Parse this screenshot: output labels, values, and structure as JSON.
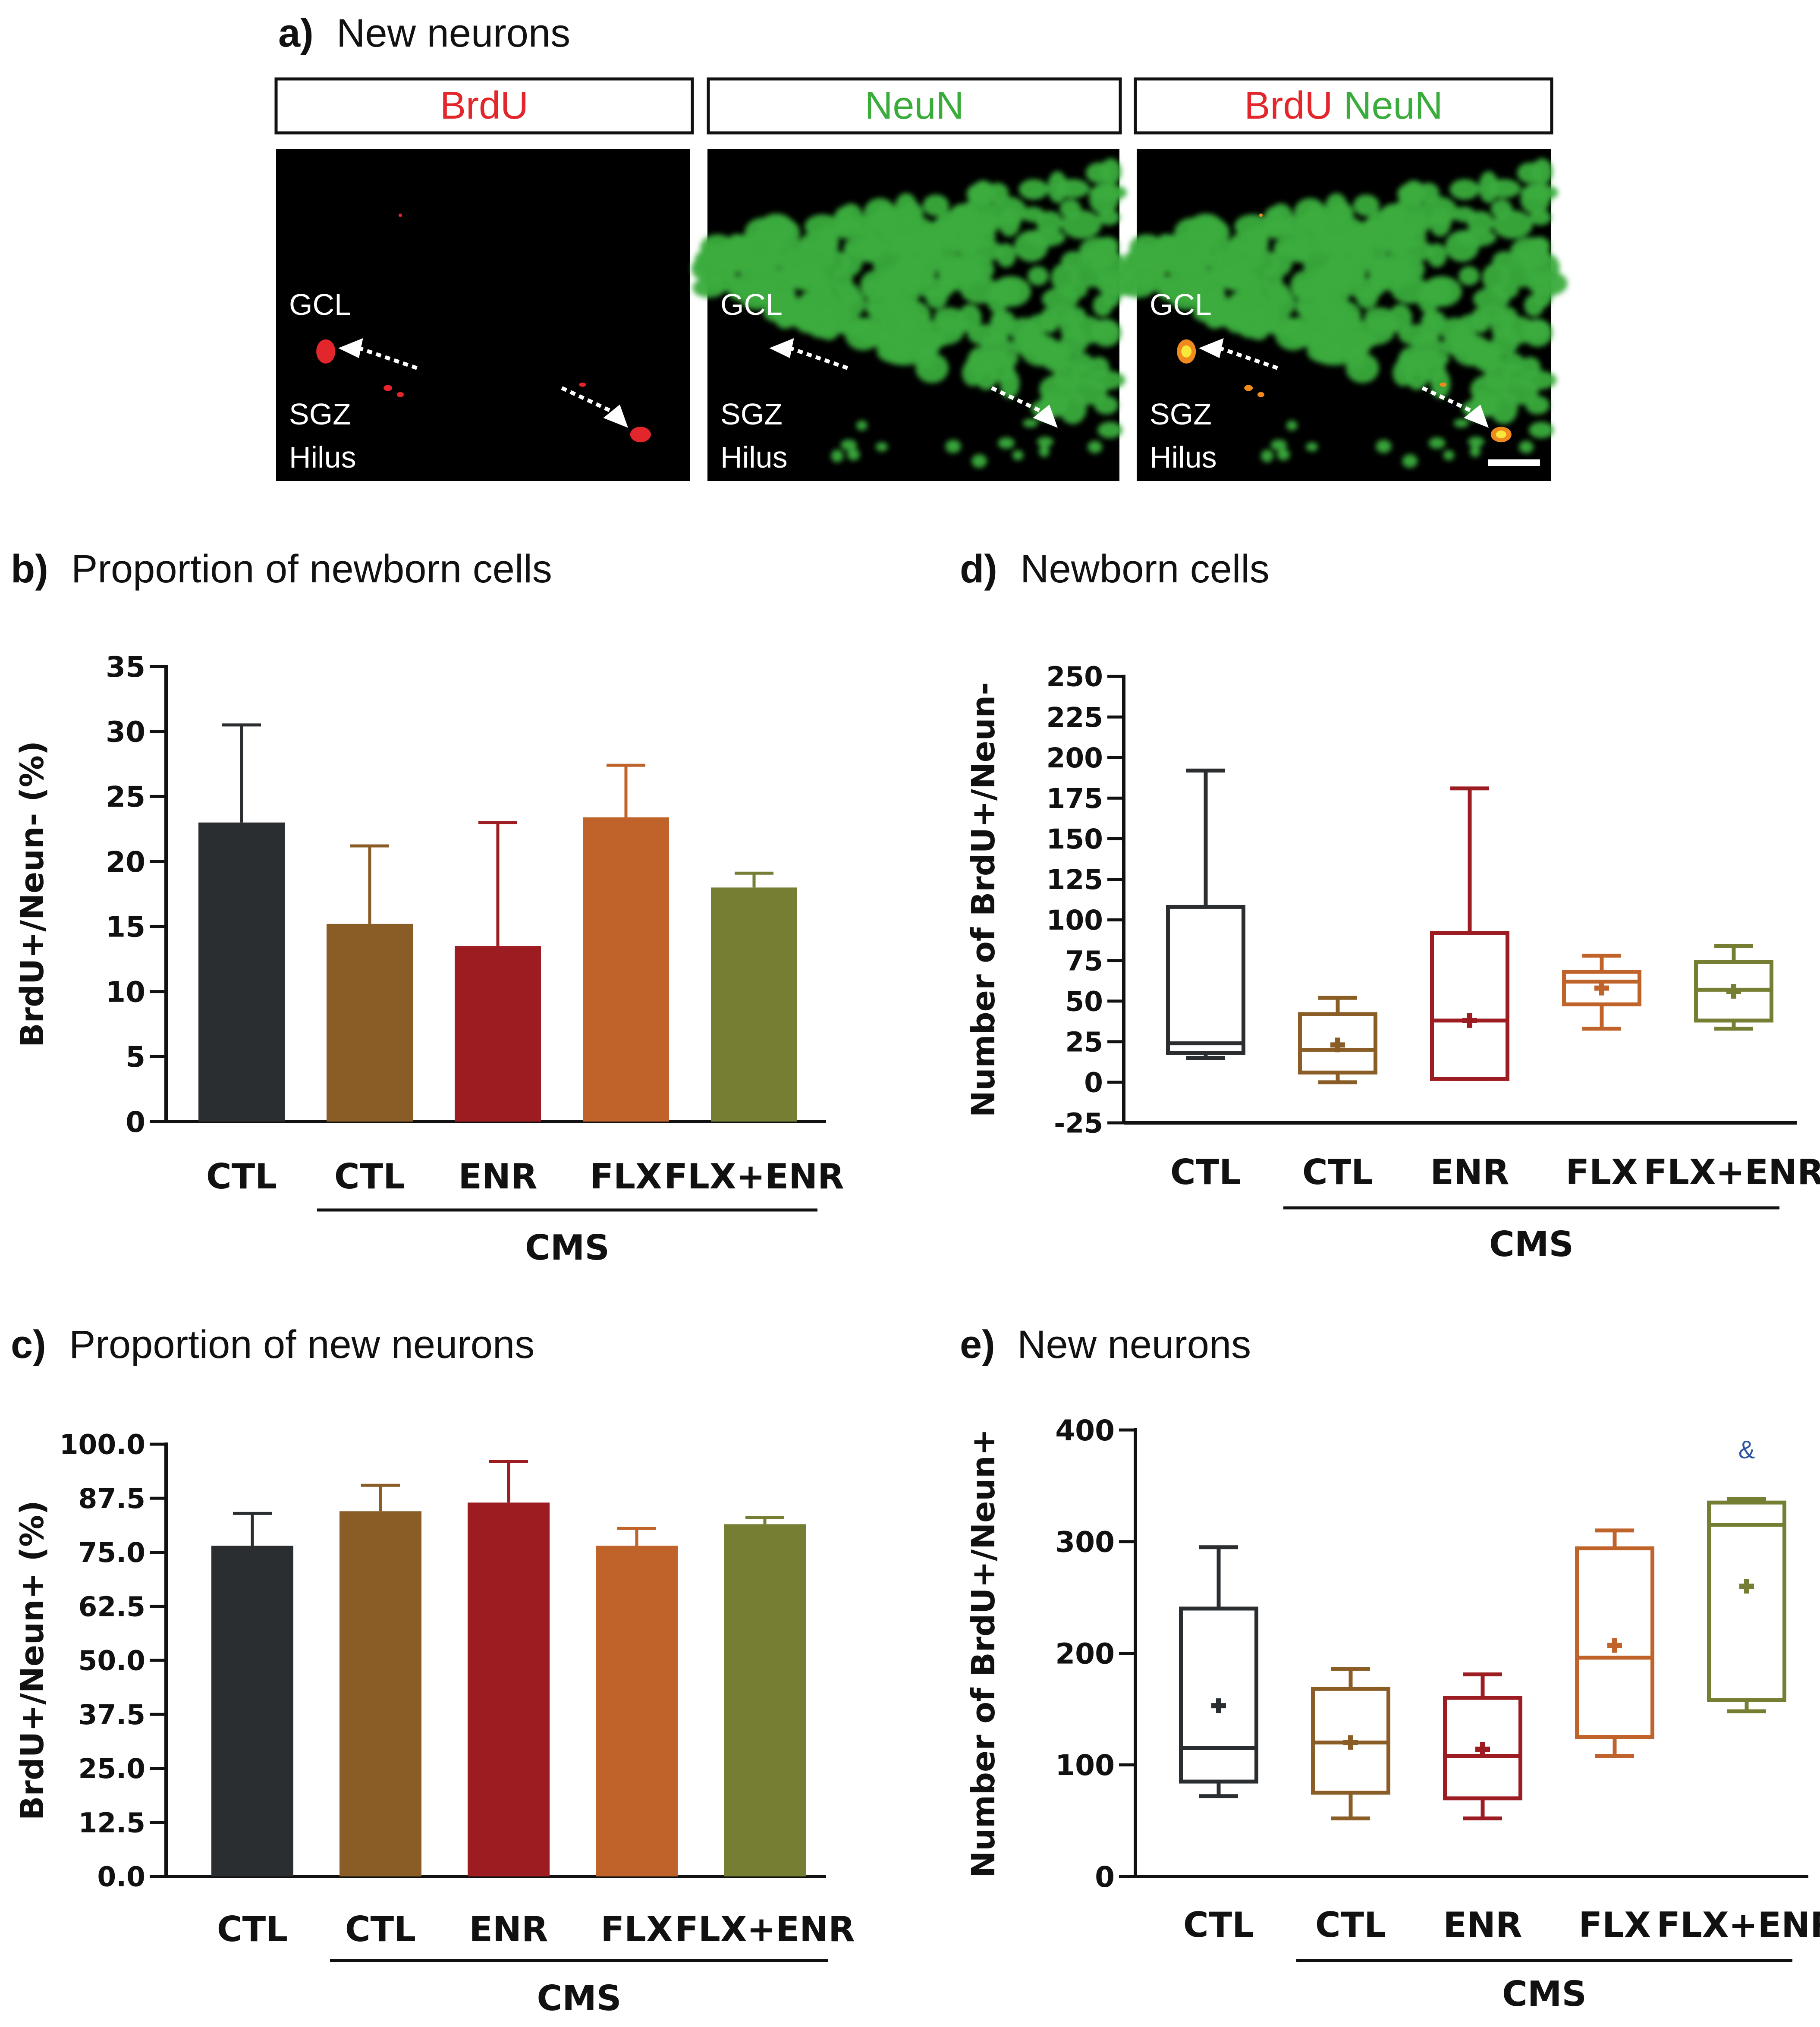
{
  "colors": {
    "CTL": "#2a2e31",
    "CMS_CTL": "#8a5d26",
    "ENR": "#9c1c22",
    "FLX": "#c0632a",
    "FLX_ENR": "#757e33",
    "brdu": "#e3262b",
    "neun": "#3aac3c",
    "stat_mark": "#3056a0"
  },
  "panel_a": {
    "letter": "a)",
    "title": "New neurons",
    "images": [
      {
        "header": [
          "BrdU"
        ],
        "header_colors": [
          "brdu"
        ],
        "labels": [
          "GCL",
          "SGZ",
          "Hilus"
        ]
      },
      {
        "header": [
          "NeuN"
        ],
        "header_colors": [
          "neun"
        ],
        "labels": [
          "GCL",
          "SGZ",
          "Hilus"
        ]
      },
      {
        "header": [
          "BrdU",
          "NeuN"
        ],
        "header_colors": [
          "brdu",
          "neun"
        ],
        "labels": [
          "GCL",
          "SGZ",
          "Hilus"
        ]
      }
    ]
  },
  "chart_data": [
    {
      "id": "b",
      "type": "bar",
      "letter": "b)",
      "title": "Proportion of newborn cells",
      "ylabel": "BrdU+/Neun-  (%)",
      "categories": [
        "CTL",
        "CTL",
        "ENR",
        "FLX",
        "FLX+ENR"
      ],
      "group_label": "CMS",
      "ylim": [
        0,
        35
      ],
      "yticks": [
        0,
        5,
        10,
        15,
        20,
        25,
        30,
        35
      ],
      "ytick_labels": [
        "0",
        "5",
        "10",
        "15",
        "20",
        "25",
        "30",
        "35"
      ],
      "values": [
        23.0,
        15.2,
        13.5,
        23.4,
        18.0
      ],
      "errors": [
        7.5,
        6.0,
        9.5,
        4.0,
        1.1
      ],
      "colors": [
        "CTL",
        "CMS_CTL",
        "ENR",
        "FLX",
        "FLX_ENR"
      ]
    },
    {
      "id": "c",
      "type": "bar",
      "letter": "c)",
      "title": "Proportion of new neurons",
      "ylabel": "BrdU+/Neun+  (%)",
      "categories": [
        "CTL",
        "CTL",
        "ENR",
        "FLX",
        "FLX+ENR"
      ],
      "group_label": "CMS",
      "ylim": [
        0,
        100
      ],
      "yticks": [
        0,
        12.5,
        25,
        37.5,
        50,
        62.5,
        75,
        87.5,
        100
      ],
      "ytick_labels": [
        "0.0",
        "12.5",
        "25.0",
        "37.5",
        "50.0",
        "62.5",
        "75.0",
        "87.5",
        "100.0"
      ],
      "values": [
        76.5,
        84.5,
        86.5,
        76.5,
        81.5
      ],
      "errors": [
        7.5,
        6.0,
        9.5,
        4.0,
        1.5
      ],
      "colors": [
        "CTL",
        "CMS_CTL",
        "ENR",
        "FLX",
        "FLX_ENR"
      ]
    },
    {
      "id": "d",
      "type": "box",
      "letter": "d)",
      "title": "Newborn cells",
      "ylabel": "Number of BrdU+/Neun-",
      "categories": [
        "CTL",
        "CTL",
        "ENR",
        "FLX",
        "FLX+ENR"
      ],
      "group_label": "CMS",
      "ylim": [
        -25,
        250
      ],
      "yticks": [
        -25,
        0,
        25,
        50,
        75,
        100,
        125,
        150,
        175,
        200,
        225,
        250
      ],
      "ytick_labels": [
        "-25",
        "0",
        "25",
        "50",
        "75",
        "100",
        "125",
        "150",
        "175",
        "200",
        "225",
        "250"
      ],
      "boxes": [
        {
          "min": 15,
          "q1": 18,
          "median": 24,
          "q3": 108,
          "max": 192,
          "mean": null
        },
        {
          "min": 0,
          "q1": 6,
          "median": 20,
          "q3": 42,
          "max": 52,
          "mean": 23
        },
        {
          "min": 2,
          "q1": 2,
          "median": 38,
          "q3": 92,
          "max": 181,
          "mean": 38
        },
        {
          "min": 33,
          "q1": 48,
          "median": 62,
          "q3": 68,
          "max": 78,
          "mean": 58
        },
        {
          "min": 33,
          "q1": 38,
          "median": 57,
          "q3": 74,
          "max": 84,
          "mean": 56
        }
      ],
      "colors": [
        "CTL",
        "CMS_CTL",
        "ENR",
        "FLX",
        "FLX_ENR"
      ]
    },
    {
      "id": "e",
      "type": "box",
      "letter": "e)",
      "title": "New neurons",
      "ylabel": "Number of BrdU+/Neun+",
      "categories": [
        "CTL",
        "CTL",
        "ENR",
        "FLX",
        "FLX+ENR"
      ],
      "group_label": "CMS",
      "ylim": [
        0,
        400
      ],
      "yticks": [
        0,
        100,
        200,
        300,
        400
      ],
      "ytick_labels": [
        "0",
        "100",
        "200",
        "300",
        "400"
      ],
      "boxes": [
        {
          "min": 72,
          "q1": 85,
          "median": 115,
          "q3": 240,
          "max": 295,
          "mean": 153
        },
        {
          "min": 52,
          "q1": 75,
          "median": 120,
          "q3": 168,
          "max": 186,
          "mean": 120
        },
        {
          "min": 52,
          "q1": 70,
          "median": 108,
          "q3": 160,
          "max": 181,
          "mean": 114
        },
        {
          "min": 108,
          "q1": 125,
          "median": 196,
          "q3": 294,
          "max": 310,
          "mean": 207
        },
        {
          "min": 148,
          "q1": 158,
          "median": 315,
          "q3": 335,
          "max": 338,
          "mean": 260
        }
      ],
      "annotation": {
        "index": 4,
        "text": "&"
      },
      "colors": [
        "CTL",
        "CMS_CTL",
        "ENR",
        "FLX",
        "FLX_ENR"
      ]
    }
  ]
}
